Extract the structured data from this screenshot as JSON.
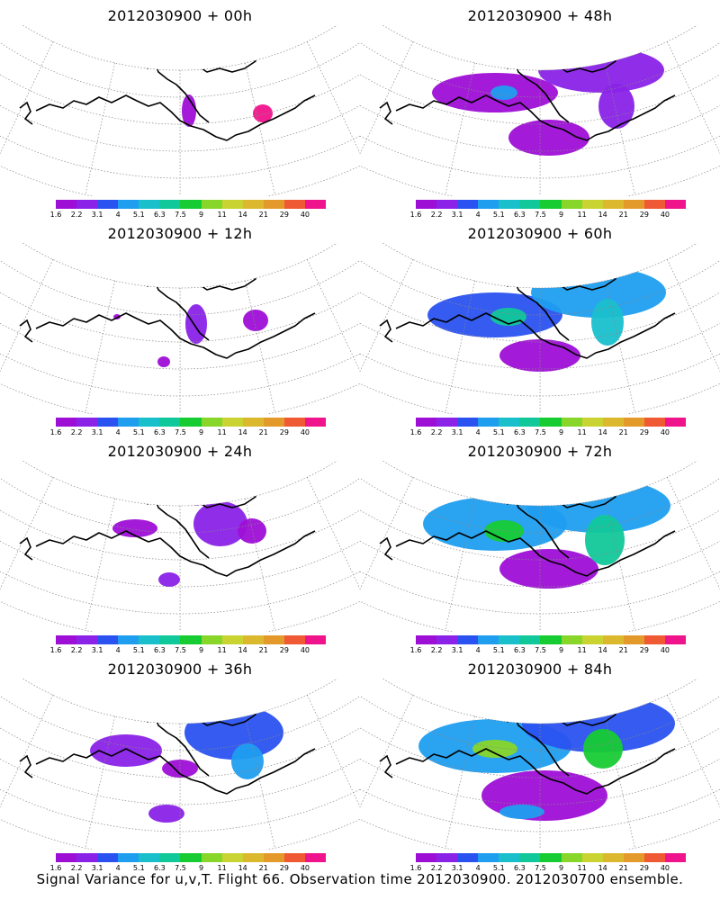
{
  "panels": [
    {
      "title": "2012030900  + 00h",
      "lead_hours": 0
    },
    {
      "title": "2012030900  + 48h",
      "lead_hours": 48
    },
    {
      "title": "2012030900  + 12h",
      "lead_hours": 12
    },
    {
      "title": "2012030900  + 60h",
      "lead_hours": 60
    },
    {
      "title": "2012030900  + 24h",
      "lead_hours": 24
    },
    {
      "title": "2012030900  + 72h",
      "lead_hours": 72
    },
    {
      "title": "2012030900  + 36h",
      "lead_hours": 36
    },
    {
      "title": "2012030900  + 84h",
      "lead_hours": 84
    }
  ],
  "colorbar": {
    "labels": [
      "1.6",
      "2.2",
      "3.1",
      "4",
      "5.1",
      "6.3",
      "7.5",
      "9",
      "11",
      "14",
      "21",
      "29",
      "40"
    ],
    "colors": [
      "#9e0fd6",
      "#8a22e8",
      "#2a52f0",
      "#1f9ef0",
      "#19c0cc",
      "#11c89a",
      "#17cc33",
      "#88d62a",
      "#c9d432",
      "#dcb82e",
      "#e49a2a",
      "#ef5a34",
      "#f0148c"
    ]
  },
  "caption": "Signal Variance for u,v,T. Flight 66. Observation time 2012030900. 2012030700 ensemble."
}
